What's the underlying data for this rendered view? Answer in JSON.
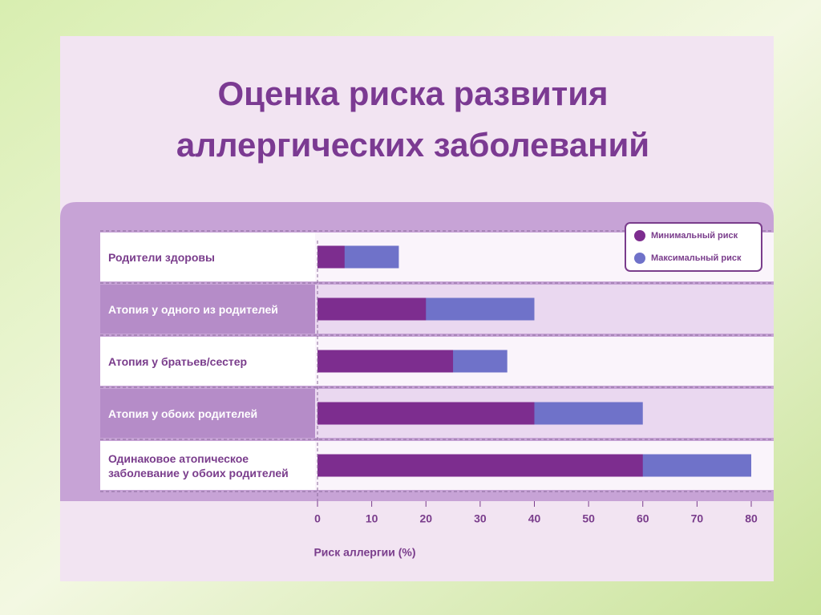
{
  "chart_data": {
    "type": "range-bar",
    "title": "Оценка риска развития аллергических заболеваний",
    "x_label": "Риск аллергии (%)",
    "categories": [
      "Родители здоровы",
      "Атопия у одного из родителей",
      "Атопия у братьев/сестер",
      "Атопия у обоих родителей",
      "Одинаковое атопическое заболевание у обоих родителей"
    ],
    "series": [
      {
        "name": "Минимальный риск",
        "color": "#7d2d8f",
        "values": [
          5,
          20,
          25,
          40,
          60
        ]
      },
      {
        "name": "Максимальный риск",
        "color": "#6f72c9",
        "values": [
          15,
          40,
          35,
          60,
          80
        ]
      }
    ],
    "xlim": [
      0,
      80
    ],
    "xticks": [
      0,
      10,
      20,
      30,
      40,
      50,
      60,
      70,
      80
    ],
    "legend": "upper right"
  }
}
